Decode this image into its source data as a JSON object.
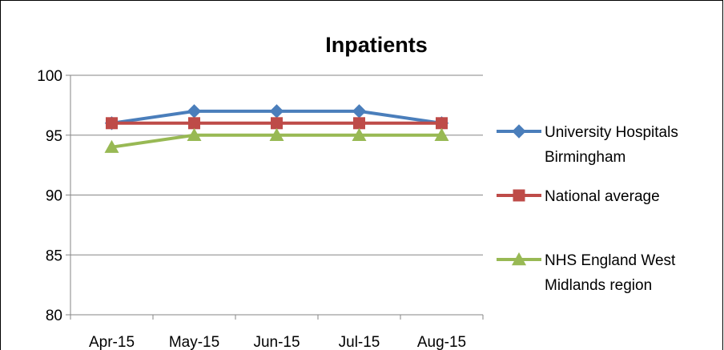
{
  "chart_data": {
    "type": "line",
    "title": "Inpatients",
    "xlabel": "",
    "ylabel": "",
    "categories": [
      "Apr-15",
      "May-15",
      "Jun-15",
      "Jul-15",
      "Aug-15"
    ],
    "ylim": [
      80,
      100
    ],
    "yticks": [
      80,
      85,
      90,
      95,
      100
    ],
    "grid": true,
    "legend_position": "right",
    "series": [
      {
        "name": "University Hospitals Birmingham",
        "name_lines": [
          "University Hospitals",
          "Birmingham"
        ],
        "values": [
          96,
          97,
          97,
          97,
          96
        ],
        "color": "#4a7ebb",
        "marker": "diamond"
      },
      {
        "name": "National average",
        "name_lines": [
          "National average"
        ],
        "values": [
          96,
          96,
          96,
          96,
          96
        ],
        "color": "#be4b48",
        "marker": "square"
      },
      {
        "name": "NHS England West Midlands region",
        "name_lines": [
          "NHS England West",
          "Midlands region"
        ],
        "values": [
          94,
          95,
          95,
          95,
          95
        ],
        "color": "#98b954",
        "marker": "triangle"
      }
    ]
  }
}
